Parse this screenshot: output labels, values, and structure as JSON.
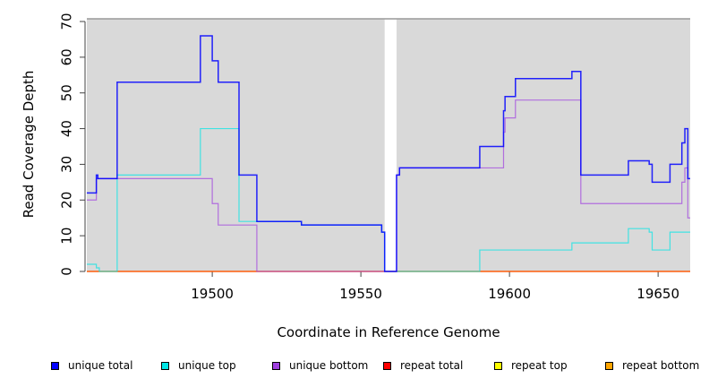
{
  "chart_data": {
    "type": "line",
    "step": true,
    "xlabel": "Coordinate in Reference Genome",
    "ylabel": "Read Coverage Depth",
    "xlim": [
      19457.8,
      19660.8
    ],
    "ylim": [
      0,
      71
    ],
    "xticks": [
      19500,
      19550,
      19600,
      19650
    ],
    "yticks": [
      0,
      10,
      20,
      30,
      40,
      50,
      60,
      70
    ],
    "gaps": [
      [
        19558,
        19562
      ]
    ],
    "series": [
      {
        "name": "unique total",
        "color": "#0000ff",
        "steps": [
          [
            19457.8,
            22
          ],
          [
            19461,
            27
          ],
          [
            19461.5,
            26
          ],
          [
            19468,
            53
          ],
          [
            19496,
            66
          ],
          [
            19500,
            59
          ],
          [
            19502,
            53
          ],
          [
            19509,
            27
          ],
          [
            19515,
            14
          ],
          [
            19530,
            13
          ],
          [
            19557,
            11
          ],
          [
            19558,
            0
          ],
          [
            19562,
            27
          ],
          [
            19563,
            29
          ],
          [
            19590,
            35
          ],
          [
            19598,
            45
          ],
          [
            19598.5,
            49
          ],
          [
            19602,
            54
          ],
          [
            19621,
            56
          ],
          [
            19624,
            27
          ],
          [
            19640,
            31
          ],
          [
            19647,
            30
          ],
          [
            19648,
            25
          ],
          [
            19654,
            30
          ],
          [
            19658,
            36
          ],
          [
            19659,
            40
          ],
          [
            19660,
            26
          ]
        ],
        "end": 19660.8
      },
      {
        "name": "unique top",
        "color": "#00e5e5",
        "steps": [
          [
            19457.8,
            2
          ],
          [
            19461,
            1
          ],
          [
            19462,
            0
          ],
          [
            19468,
            27
          ],
          [
            19496,
            40
          ],
          [
            19509,
            14
          ],
          [
            19530,
            13
          ],
          [
            19557,
            11
          ],
          [
            19558,
            0
          ],
          [
            19590,
            6
          ],
          [
            19621,
            8
          ],
          [
            19640,
            12
          ],
          [
            19647,
            11
          ],
          [
            19648,
            6
          ],
          [
            19654,
            11
          ]
        ],
        "end": 19660.8
      },
      {
        "name": "unique bottom",
        "color": "#a040e0",
        "steps": [
          [
            19457.8,
            20
          ],
          [
            19461,
            26
          ],
          [
            19500,
            19
          ],
          [
            19502,
            13
          ],
          [
            19515,
            0
          ],
          [
            19562,
            27
          ],
          [
            19563,
            29
          ],
          [
            19598,
            39
          ],
          [
            19598.5,
            43
          ],
          [
            19602,
            48
          ],
          [
            19624,
            19
          ],
          [
            19658,
            25
          ],
          [
            19659,
            29
          ],
          [
            19660,
            15
          ]
        ],
        "end": 19660.8
      },
      {
        "name": "repeat total",
        "color": "#ff0000",
        "steps": [
          [
            19457.8,
            0
          ]
        ],
        "end": 19660.8
      },
      {
        "name": "repeat top",
        "color": "#ffff00",
        "steps": [
          [
            19457.8,
            0
          ]
        ],
        "end": 19660.8
      },
      {
        "name": "repeat bottom",
        "color": "#ffa500",
        "steps": [
          [
            19457.8,
            0
          ]
        ],
        "end": 19660.8
      }
    ]
  }
}
